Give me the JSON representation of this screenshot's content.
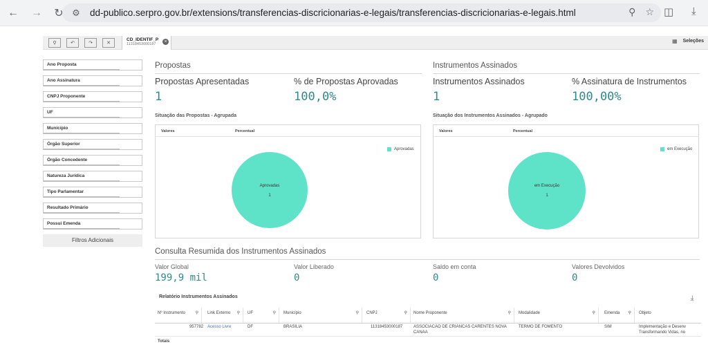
{
  "browser": {
    "url": "dd-publico.serpro.gov.br/extensions/transferencias-discricionarias-e-legais/transferencias-discricionarias-e-legais.html"
  },
  "toolbar": {
    "selection_title": "CD_IDENTIF_P...",
    "selection_value": "11318453000187",
    "selections_label": "Seleções"
  },
  "filters": {
    "items": [
      "Ano Proposta",
      "Ano Assinatura",
      "CNPJ Proponente",
      "UF",
      "Município",
      "Órgão Superior",
      "Órgão Concedente",
      "Natureza Jurídica",
      "Tipo Parlamentar",
      "Resultado Primário",
      "Possui Emenda"
    ],
    "extra_label": "Filtros Adicionais"
  },
  "propostas": {
    "section_title": "Propostas",
    "kpi1_label": "Propostas Apresentadas",
    "kpi1_value": "1",
    "kpi2_label": "% de Propostas Aprovadas",
    "kpi2_value": "100,0%",
    "chart_title": "Situação das Propostas - Agrupada",
    "col_valores": "Valores",
    "col_percentual": "Percentual",
    "legend": "Aprovadas",
    "slice_label": "Aprovadas",
    "slice_value": "1"
  },
  "instrumentos": {
    "section_title": "Instrumentos Assinados",
    "kpi1_label": "Instrumentos Assinados",
    "kpi1_value": "1",
    "kpi2_label": "% Assinatura de Instrumentos",
    "kpi2_value": "100,00%",
    "chart_title": "Situação dos Instrumentos Assinados - Agrupado",
    "col_valores": "Valores",
    "col_percentual": "Percentual",
    "legend": "em Execução",
    "slice_label": "em Execução",
    "slice_value": "1"
  },
  "consulta": {
    "section_title": "Consulta Resumida dos Instrumentos Assinados",
    "valor_global_label": "Valor Global",
    "valor_global": "199,9 mil",
    "valor_liberado_label": "Valor Liberado",
    "valor_liberado": "0",
    "saldo_label": "Saldo em conta",
    "saldo": "0",
    "devolvidos_label": "Valores Devolvidos",
    "devolvidos": "0"
  },
  "report": {
    "title": "Relatório Instrumentos Assinados",
    "columns": [
      "Nº Instrumento",
      "Link Externo",
      "UF",
      "Município",
      "CNPJ",
      "Nome Proponente",
      "Modalidade",
      "Emenda",
      "Objeto"
    ],
    "row": {
      "instrumento": "957782",
      "link": "Acesso Livre",
      "uf": "DF",
      "municipio": "BRASILIA",
      "cnpj": "11318453000187",
      "proponente_1": "ASSOCIACAO DE CRIANCAS CARENTES NOVA",
      "proponente_2": "CANAA",
      "modalidade": "TERMO DE FOMENTO",
      "emenda": "SIM",
      "objeto_1": "Implementação e Desenv",
      "objeto_2": "Transformando Vidas, no"
    },
    "totals_label": "Totais"
  },
  "chart_data": [
    {
      "type": "pie",
      "title": "Situação das Propostas - Agrupada",
      "categories": [
        "Aprovadas"
      ],
      "values": [
        1
      ],
      "legend": "right"
    },
    {
      "type": "pie",
      "title": "Situação dos Instrumentos Assinados - Agrupado",
      "categories": [
        "em Execução"
      ],
      "values": [
        1
      ],
      "legend": "right"
    }
  ]
}
